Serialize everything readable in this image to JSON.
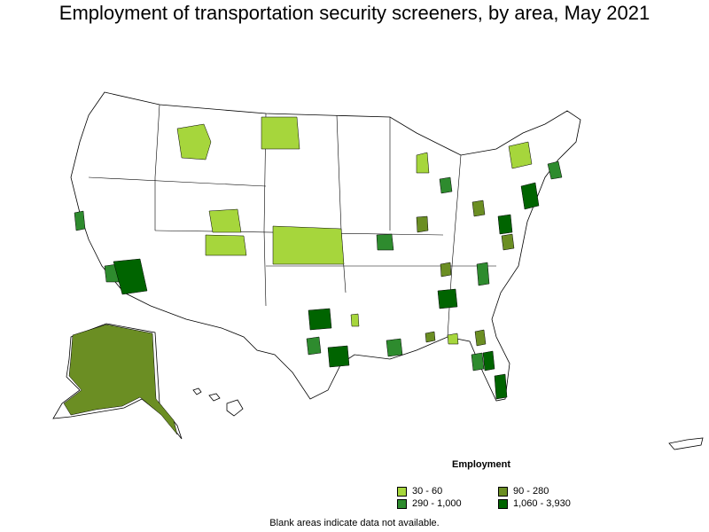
{
  "title": "Employment of transportation security screeners, by area, May 2021",
  "legend": {
    "title": "Employment",
    "items": [
      {
        "label": "30 - 60",
        "color": "#a6d63c"
      },
      {
        "label": "90 - 280",
        "color": "#6b8e23"
      },
      {
        "label": "290 - 1,000",
        "color": "#2e8b2e"
      },
      {
        "label": "1,060 - 3,930",
        "color": "#006400"
      }
    ]
  },
  "footnote": "Blank areas indicate data not available.",
  "colors": {
    "border": "#000000",
    "no_data": "#ffffff"
  }
}
